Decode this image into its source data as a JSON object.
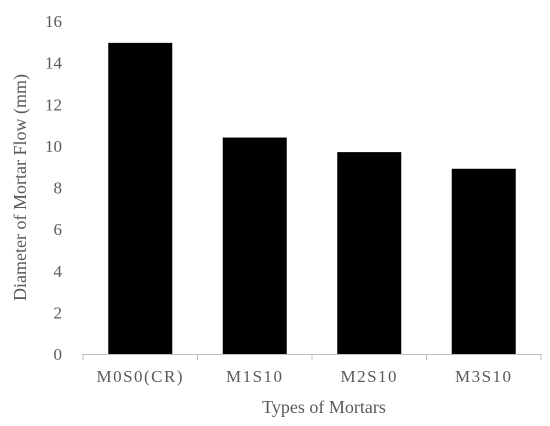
{
  "chart_data": {
    "type": "bar",
    "title": "",
    "xlabel": "Types of Mortars",
    "ylabel": "Diameter of Mortar Flow (mm)",
    "categories": [
      "M0S0(CR)",
      "M1S10",
      "M2S10",
      "M3S10"
    ],
    "values": [
      14.95,
      10.4,
      9.7,
      8.9
    ],
    "ylim": [
      0,
      16
    ],
    "yticks": [
      0,
      2,
      4,
      6,
      8,
      10,
      12,
      14,
      16
    ],
    "grid": false,
    "legend": "none",
    "bar_color": "#000000",
    "axis_color": "#bfbfbf",
    "text_color": "#595959"
  }
}
